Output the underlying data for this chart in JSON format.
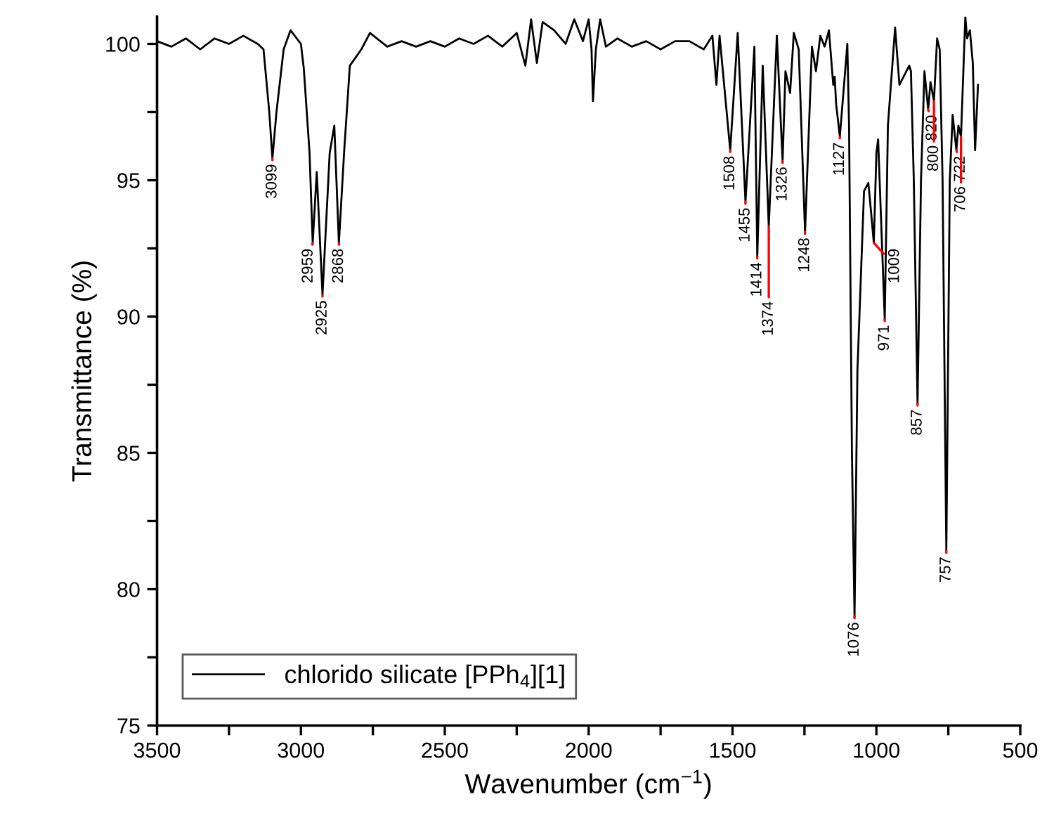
{
  "chart_data": {
    "type": "line",
    "xlabel": "Wavenumber (cm$^{−1}$)",
    "ylabel": "Transmittance (%)",
    "xlim": [
      3500,
      500
    ],
    "ylim": [
      75,
      101
    ],
    "xticks": [
      3500,
      {
        "value": 3250,
        "label": null
      },
      3000,
      {
        "value": 2750,
        "label": null
      },
      2500,
      {
        "value": 2250,
        "label": null
      },
      2000,
      {
        "value": 1750,
        "label": null
      },
      1500,
      {
        "value": 1250,
        "label": null
      },
      1000,
      {
        "value": 750,
        "label": null
      },
      500
    ],
    "yticks": [
      75,
      {
        "value": 77.5,
        "label": null
      },
      80,
      {
        "value": 82.5,
        "label": null
      },
      85,
      {
        "value": 87.5,
        "label": null
      },
      90,
      {
        "value": 92.5,
        "label": null
      },
      95,
      {
        "value": 97.5,
        "label": null
      },
      100
    ],
    "grid": false,
    "legend": "bottom left",
    "marker": "none",
    "line_style": "solid",
    "series": [
      {
        "name": "chlorido silicate [PPh$_{4}$][1]",
        "color": "#000000",
        "x": [
          3500,
          3450,
          3400,
          3350,
          3300,
          3250,
          3200,
          3150,
          3130,
          3110,
          3099,
          3085,
          3060,
          3036,
          3000,
          2990,
          2970,
          2959,
          2945,
          2925,
          2900,
          2884,
          2868,
          2850,
          2830,
          2790,
          2760,
          2700,
          2650,
          2600,
          2550,
          2500,
          2450,
          2400,
          2350,
          2300,
          2250,
          2220,
          2200,
          2180,
          2160,
          2120,
          2080,
          2050,
          2020,
          2000,
          1990,
          1985,
          1975,
          1960,
          1940,
          1900,
          1850,
          1800,
          1750,
          1700,
          1650,
          1600,
          1570,
          1556,
          1545,
          1508,
          1482,
          1455,
          1424,
          1414,
          1395,
          1374,
          1346,
          1326,
          1316,
          1300,
          1287,
          1270,
          1248,
          1224,
          1210,
          1195,
          1180,
          1165,
          1150,
          1145,
          1140,
          1127,
          1101,
          1095,
          1085,
          1076,
          1066,
          1043,
          1028,
          1020,
          1009,
          1000,
          994,
          971,
          960,
          935,
          920,
          886,
          880,
          870,
          857,
          845,
          833,
          820,
          812,
          800,
          789,
          780,
          770,
          757,
          745,
          735,
          722,
          715,
          706,
          691,
          685,
          675,
          665,
          657,
          647
        ],
        "values": [
          100.1,
          99.9,
          100.2,
          99.8,
          100.2,
          100.0,
          100.3,
          100.0,
          99.8,
          97.5,
          95.8,
          97.5,
          99.8,
          100.5,
          100.0,
          99.1,
          96.0,
          92.7,
          95.3,
          90.8,
          96.0,
          97.0,
          92.7,
          96.0,
          99.2,
          99.8,
          100.4,
          99.9,
          100.1,
          99.9,
          100.1,
          99.9,
          100.2,
          100.0,
          100.3,
          99.9,
          100.4,
          99.2,
          100.9,
          99.3,
          100.8,
          100.5,
          100.0,
          100.9,
          100.1,
          100.9,
          99.8,
          97.9,
          99.8,
          100.9,
          99.9,
          100.2,
          99.9,
          100.1,
          99.8,
          100.1,
          100.1,
          99.8,
          100.3,
          98.5,
          100.3,
          96.1,
          100.4,
          94.2,
          99.9,
          92.2,
          99.2,
          93.3,
          100.3,
          95.7,
          99.0,
          98.2,
          100.4,
          99.8,
          93.1,
          99.9,
          99.0,
          100.3,
          99.9,
          100.5,
          98.5,
          98.8,
          97.8,
          96.6,
          100.0,
          97.0,
          85.0,
          79.0,
          88.0,
          94.6,
          94.9,
          94.0,
          92.7,
          96.0,
          96.5,
          89.9,
          97.0,
          100.6,
          98.5,
          99.2,
          99.0,
          95.0,
          86.8,
          95.0,
          99.0,
          97.6,
          98.6,
          97.9,
          100.2,
          99.8,
          95.0,
          81.4,
          95.0,
          97.4,
          96.1,
          97.0,
          96.6,
          101.0,
          100.2,
          100.5,
          99.3,
          96.1,
          98.5
        ]
      }
    ],
    "annotations": [
      {
        "text": "3099",
        "x": 3099,
        "y": 95.8
      },
      {
        "text": "2959",
        "x": 2959,
        "y": 92.7
      },
      {
        "text": "2925",
        "x": 2925,
        "y": 90.8
      },
      {
        "text": "2868",
        "x": 2868,
        "y": 92.7
      },
      {
        "text": "1508",
        "x": 1508,
        "y": 96.1
      },
      {
        "text": "1455",
        "x": 1455,
        "y": 94.2
      },
      {
        "text": "1414",
        "x": 1414,
        "y": 92.2
      },
      {
        "text": "1374",
        "x": 1374,
        "y": 93.3
      },
      {
        "text": "1326",
        "x": 1326,
        "y": 95.7
      },
      {
        "text": "1248",
        "x": 1248,
        "y": 93.1
      },
      {
        "text": "1127",
        "x": 1127,
        "y": 96.6
      },
      {
        "text": "1076",
        "x": 1076,
        "y": 79.0
      },
      {
        "text": "1009",
        "x": 1009,
        "y": 92.7
      },
      {
        "text": "971",
        "x": 971,
        "y": 89.9
      },
      {
        "text": "857",
        "x": 857,
        "y": 86.8
      },
      {
        "text": "820",
        "x": 820,
        "y": 97.6
      },
      {
        "text": "800",
        "x": 800,
        "y": 97.9
      },
      {
        "text": "757",
        "x": 757,
        "y": 81.4
      },
      {
        "text": "722",
        "x": 722,
        "y": 96.1
      },
      {
        "text": "706",
        "x": 706,
        "y": 96.6
      }
    ]
  }
}
